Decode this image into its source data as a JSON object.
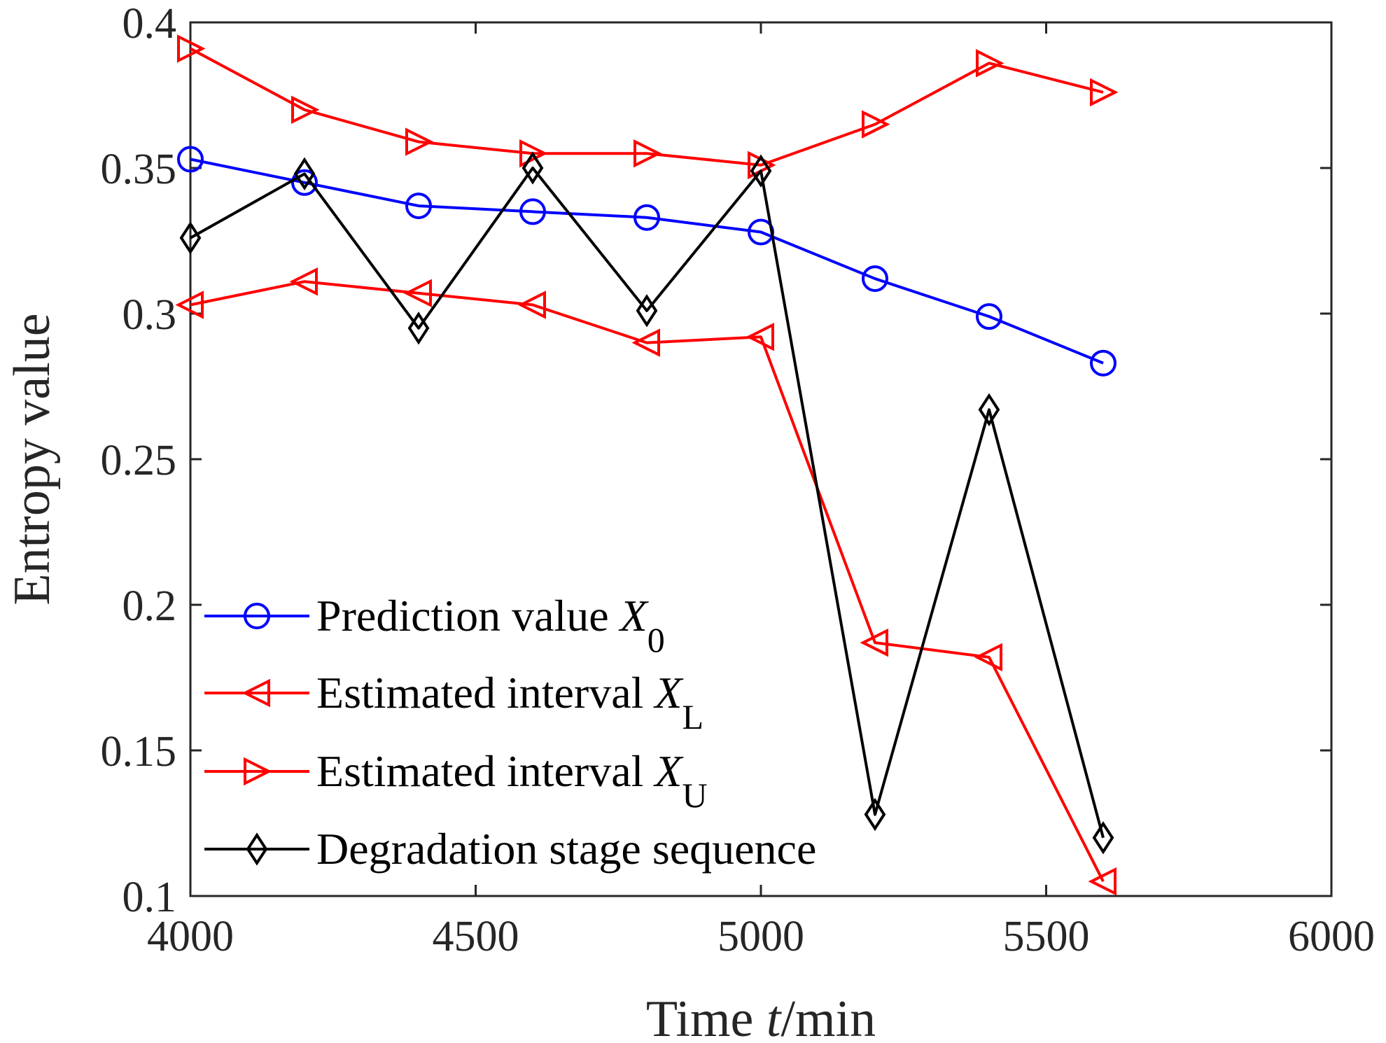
{
  "chart_data": {
    "type": "line",
    "xlabel": {
      "prefix": "Time ",
      "var": "t",
      "suffix": "/min"
    },
    "ylabel": "Entropy value",
    "xlim": [
      4000,
      6000
    ],
    "ylim": [
      0.1,
      0.4
    ],
    "xticks": [
      4000,
      4500,
      5000,
      5500,
      6000
    ],
    "yticks": [
      0.1,
      0.15,
      0.2,
      0.25,
      0.3,
      0.35,
      0.4
    ],
    "xtick_labels": [
      "4000",
      "4500",
      "5000",
      "5500",
      "6000"
    ],
    "ytick_labels": [
      "0.1",
      "0.15",
      "0.2",
      "0.25",
      "0.3",
      "0.35",
      "0.4"
    ],
    "grid": false,
    "legend_position": "bottom-left",
    "x": [
      4000,
      4200,
      4400,
      4600,
      4800,
      5000,
      5200,
      5400,
      5600
    ],
    "series": [
      {
        "name": "Prediction value ",
        "name_var": "X",
        "name_sub": "0",
        "color": "#0000ff",
        "marker": "circle",
        "values": [
          0.353,
          0.345,
          0.337,
          0.335,
          0.333,
          0.328,
          0.312,
          0.299,
          0.283
        ]
      },
      {
        "name": "Estimated interval ",
        "name_var": "X",
        "name_sub": "L",
        "color": "#ff0000",
        "marker": "triangle-left",
        "values": [
          0.303,
          0.311,
          0.307,
          0.303,
          0.29,
          0.292,
          0.187,
          0.182,
          0.105
        ]
      },
      {
        "name": "Estimated interval ",
        "name_var": "X",
        "name_sub": "U",
        "color": "#ff0000",
        "marker": "triangle-right",
        "values": [
          0.391,
          0.37,
          0.359,
          0.355,
          0.355,
          0.351,
          0.365,
          0.386,
          0.376
        ]
      },
      {
        "name": "Degradation stage sequence",
        "name_var": "",
        "name_sub": "",
        "color": "#000000",
        "marker": "diamond",
        "values": [
          0.326,
          0.348,
          0.295,
          0.35,
          0.301,
          0.349,
          0.128,
          0.267,
          0.12
        ]
      }
    ]
  }
}
